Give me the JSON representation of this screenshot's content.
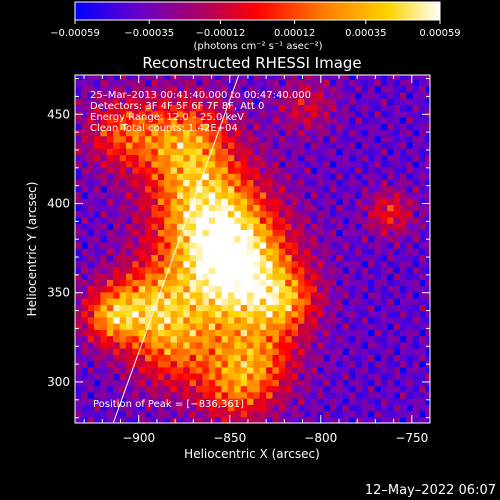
{
  "chart_data": {
    "type": "heatmap",
    "title": "Reconstructed RHESSI Image",
    "xlabel": "Heliocentric X (arcsec)",
    "ylabel": "Heliocentric Y (arcsec)",
    "xlim": [
      -935,
      -740
    ],
    "ylim": [
      277,
      472
    ],
    "x_ticks": [
      -900,
      -850,
      -800,
      -750
    ],
    "x_tick_labels": [
      "−900",
      "−850",
      "−800",
      "−750"
    ],
    "y_ticks": [
      300,
      350,
      400,
      450
    ],
    "y_tick_labels": [
      "300",
      "350",
      "400",
      "450"
    ],
    "colorbar": {
      "range": [
        -0.00059,
        0.00059
      ],
      "ticks": [
        -0.00059,
        -0.00035,
        -0.00012,
        0.00012,
        0.00035,
        0.00059
      ],
      "tick_labels": [
        "−0.00059",
        "−0.00035",
        "−0.00012",
        "0.00012",
        "0.00035",
        "0.00059"
      ],
      "unit_label": "(photons cm⁻² s⁻¹ asec⁻²)",
      "colors": [
        "#0000ff",
        "#6a00c8",
        "#b0005a",
        "#ff0000",
        "#ff7a00",
        "#ffd400",
        "#ffffff"
      ]
    },
    "annotations": [
      "25–Mar–2013 00:41:40.000 to 00:47:40.000",
      "Detectors: 3F 4F 5F 6F 7F 8F, Att 0",
      "Energy Range: 12.0 – 25.0 keV",
      "Clean     Total counts: 1.42E+04"
    ],
    "peak_label": "Position of Peak = [−836,361]",
    "peak": [
      -836,
      361
    ],
    "limb_line": [
      [
        -914,
        277
      ],
      [
        -845,
        472
      ]
    ],
    "emission_sources": [
      {
        "x": -846,
        "y": 360,
        "sigma": 22,
        "amp": 1.0
      },
      {
        "x": -862,
        "y": 395,
        "sigma": 22,
        "amp": 0.78
      },
      {
        "x": -875,
        "y": 435,
        "sigma": 18,
        "amp": 0.62
      },
      {
        "x": -895,
        "y": 345,
        "sigma": 16,
        "amp": 0.55
      },
      {
        "x": -916,
        "y": 337,
        "sigma": 11,
        "amp": 0.55
      },
      {
        "x": -880,
        "y": 320,
        "sigma": 18,
        "amp": 0.5
      },
      {
        "x": -835,
        "y": 312,
        "sigma": 16,
        "amp": 0.5
      },
      {
        "x": -818,
        "y": 345,
        "sigma": 12,
        "amp": 0.42
      },
      {
        "x": -910,
        "y": 440,
        "sigma": 14,
        "amp": 0.45
      },
      {
        "x": -808,
        "y": 455,
        "sigma": 11,
        "amp": 0.3
      },
      {
        "x": -762,
        "y": 395,
        "sigma": 9,
        "amp": 0.4
      },
      {
        "x": -848,
        "y": 295,
        "sigma": 14,
        "amp": 0.38
      }
    ],
    "timestamp": "12–May–2022 06:07"
  }
}
